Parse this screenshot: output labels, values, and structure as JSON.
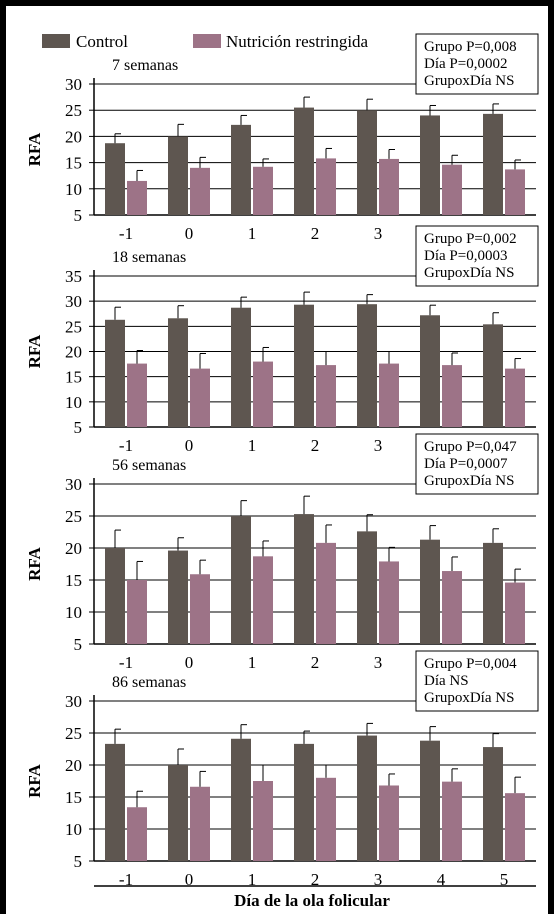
{
  "colors": {
    "control": "#5e5650",
    "restricted": "#9d7387",
    "frame": "#000000"
  },
  "header_text": "",
  "legend": {
    "control": "Control",
    "restricted": "Nutrición restringida"
  },
  "chart_data": [
    {
      "type": "bar",
      "title": "7 semanas",
      "ylabel": "RFA",
      "categories": [
        "-1",
        "0",
        "1",
        "2",
        "3",
        "4",
        "5"
      ],
      "ylim": [
        5,
        30
      ],
      "yticks": [
        5,
        10,
        15,
        20,
        25,
        30
      ],
      "series": [
        {
          "name": "Control",
          "values": [
            18.7,
            20.0,
            22.2,
            25.5,
            25.0,
            24.0,
            24.3
          ],
          "errors": [
            1.8,
            2.3,
            1.8,
            2.0,
            2.1,
            1.9,
            1.9
          ]
        },
        {
          "name": "Nutrición restringida",
          "values": [
            11.5,
            14.0,
            14.2,
            15.8,
            15.7,
            14.6,
            13.7
          ],
          "errors": [
            2.0,
            2.0,
            1.5,
            1.9,
            1.8,
            1.8,
            1.8
          ]
        }
      ],
      "stats": [
        "Grupo P=0,008",
        "Día P=0,0002",
        "GrupoxDía NS"
      ]
    },
    {
      "type": "bar",
      "title": "18 semanas",
      "ylabel": "RFA",
      "categories": [
        "-1",
        "0",
        "1",
        "2",
        "3",
        "4",
        "5"
      ],
      "ylim": [
        5,
        35
      ],
      "yticks": [
        5,
        10,
        15,
        20,
        25,
        30,
        35
      ],
      "series": [
        {
          "name": "Control",
          "values": [
            26.3,
            26.6,
            28.7,
            29.3,
            29.4,
            27.2,
            25.4
          ],
          "errors": [
            2.5,
            2.5,
            2.1,
            2.5,
            1.9,
            2.0,
            2.3
          ]
        },
        {
          "name": "Nutrición restringida",
          "values": [
            17.6,
            16.6,
            18.0,
            17.3,
            17.6,
            17.3,
            16.6
          ],
          "errors": [
            2.6,
            3.0,
            2.8,
            2.7,
            2.4,
            2.4,
            2.0
          ]
        }
      ],
      "stats": [
        "Grupo P=0,002",
        "Día P=0,0003",
        "GrupoxDía NS"
      ]
    },
    {
      "type": "bar",
      "title": "56 semanas",
      "ylabel": "RFA",
      "categories": [
        "-1",
        "0",
        "1",
        "2",
        "3",
        "4",
        "5"
      ],
      "ylim": [
        5,
        30
      ],
      "yticks": [
        5,
        10,
        15,
        20,
        25,
        30
      ],
      "series": [
        {
          "name": "Control",
          "values": [
            20.0,
            19.6,
            25.0,
            25.3,
            22.6,
            21.3,
            20.8
          ],
          "errors": [
            2.8,
            2.0,
            2.4,
            2.8,
            2.6,
            2.2,
            2.2
          ]
        },
        {
          "name": "Nutrición restringida",
          "values": [
            15.0,
            15.9,
            18.7,
            20.8,
            17.9,
            16.4,
            14.6
          ],
          "errors": [
            2.9,
            2.2,
            2.4,
            2.8,
            2.2,
            2.2,
            2.1
          ]
        }
      ],
      "stats": [
        "Grupo P=0,047",
        "Día P=0,0007",
        "GrupoxDía NS"
      ]
    },
    {
      "type": "bar",
      "title": "86 semanas",
      "ylabel": "RFA",
      "xlabel": "Día de la ola folicular",
      "categories": [
        "-1",
        "0",
        "1",
        "2",
        "3",
        "4",
        "5"
      ],
      "ylim": [
        5,
        30
      ],
      "yticks": [
        5,
        10,
        15,
        20,
        25,
        30
      ],
      "series": [
        {
          "name": "Control",
          "values": [
            23.3,
            20.0,
            24.1,
            23.3,
            24.6,
            23.8,
            22.8
          ],
          "errors": [
            2.3,
            2.5,
            2.2,
            2.0,
            1.9,
            2.2,
            2.1
          ]
        },
        {
          "name": "Nutrición restringida",
          "values": [
            13.4,
            16.6,
            17.5,
            18.0,
            16.8,
            17.4,
            15.6
          ],
          "errors": [
            2.5,
            2.4,
            2.5,
            2.0,
            1.8,
            2.0,
            2.5
          ]
        }
      ],
      "stats": [
        "Grupo P=0,004",
        "Día NS",
        "GrupoxDía NS"
      ]
    }
  ]
}
